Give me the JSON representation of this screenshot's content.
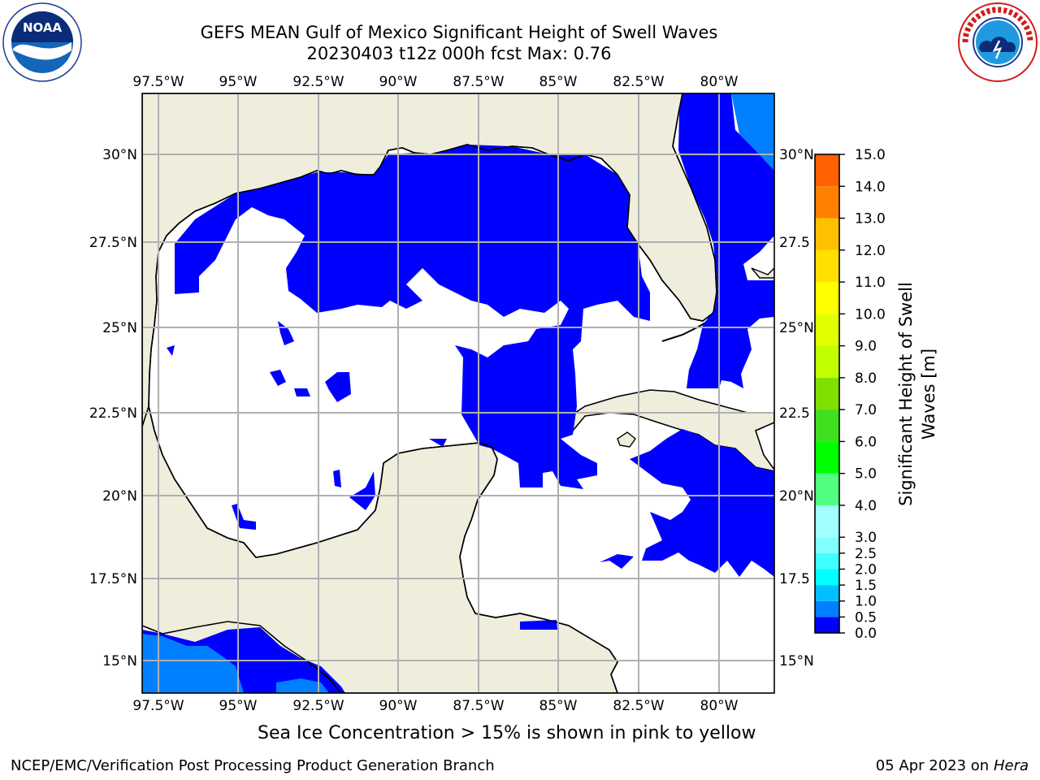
{
  "header": {
    "title_line1": "GEFS MEAN Gulf of Mexico Significant Height of Swell Waves",
    "title_line2": "20230403 t12z 000h fcst   Max: 0.76"
  },
  "logos": {
    "left": "noaa-logo",
    "left_text": "NOAA",
    "left_ring": "NATIONAL OCEANIC AND ATMOSPHERIC ADMINISTRATION · U.S. DEPARTMENT OF COMMERCE",
    "right": "nws-logo",
    "right_ring": "NATIONAL WEATHER SERVICE"
  },
  "map": {
    "lon_ticks": [
      "97.5°W",
      "95°W",
      "92.5°W",
      "90°W",
      "87.5°W",
      "85°W",
      "82.5°W",
      "80°W"
    ],
    "lat_ticks_left": [
      "30°N",
      "27.5°N",
      "25°N",
      "22.5°N",
      "20°N",
      "17.5°N",
      "15°N"
    ],
    "lat_ticks_right": [
      "30°N",
      "27.5",
      "25°N",
      "22.5",
      "20°N",
      "17.5",
      "15°N"
    ],
    "colors": {
      "land": "#efeedd",
      "low_swell": "#0000ff",
      "mid_swell": "#0080ff",
      "grid": "#b0b0b0"
    }
  },
  "colorbar": {
    "label_line1": "Significant Height of Swell",
    "label_line2": "Waves [m]",
    "ticks": [
      "0.0",
      "0.5",
      "1.0",
      "1.5",
      "2.0",
      "2.5",
      "3.0",
      "4.0",
      "5.0",
      "6.0",
      "7.0",
      "8.0",
      "9.0",
      "10.0",
      "11.0",
      "12.0",
      "13.0",
      "14.0",
      "15.0"
    ],
    "colors": [
      "#0000ff",
      "#0080ff",
      "#00c0ff",
      "#00ffff",
      "#40ffff",
      "#80ffff",
      "#a0ffff",
      "#50ff80",
      "#00ff00",
      "#40e020",
      "#80e000",
      "#c0ff00",
      "#e0ff00",
      "#ffff00",
      "#ffe000",
      "#ffc000",
      "#ff8000",
      "#ff6000",
      "#ff2000",
      "#ff0000"
    ]
  },
  "footnote": "Sea Ice Concentration > 15% is shown in pink to yellow",
  "footer": {
    "left": "NCEP/EMC/Verification Post Processing Product Generation Branch",
    "right_date": "05 Apr 2023 on ",
    "right_host": "Hera"
  }
}
